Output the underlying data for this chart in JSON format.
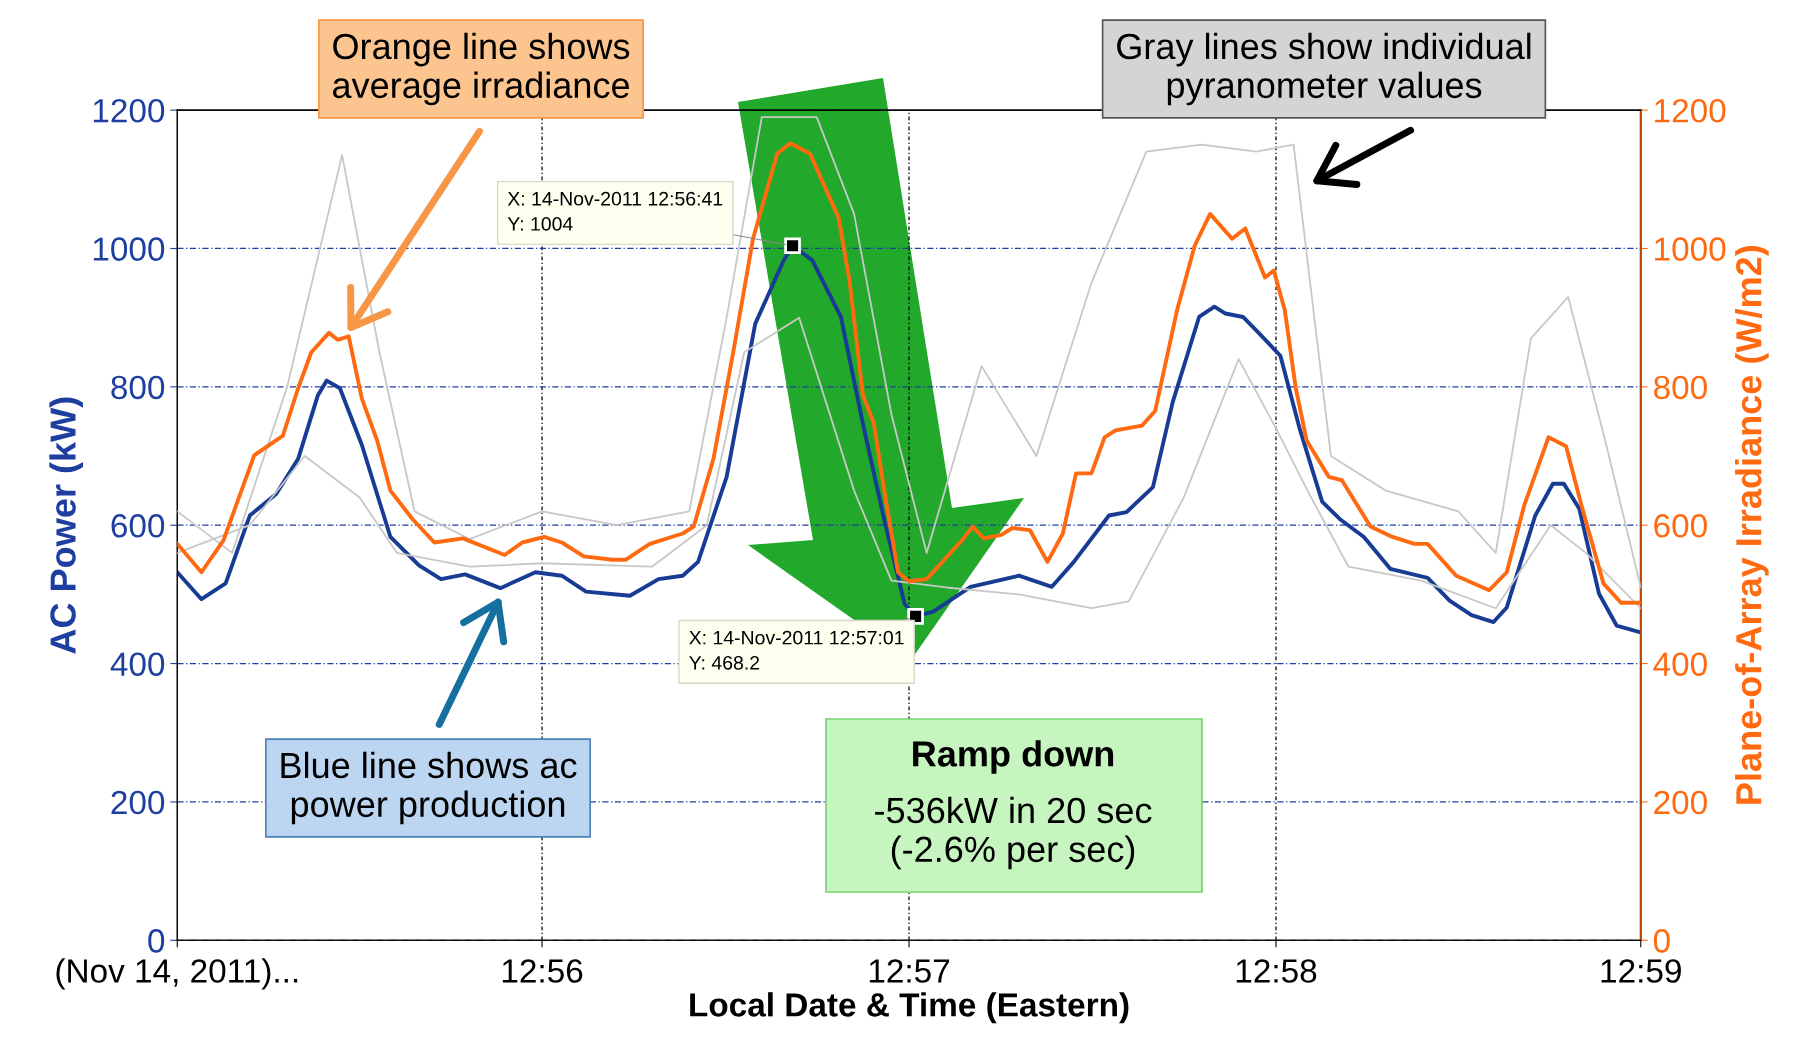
{
  "chart_data": {
    "type": "line",
    "xlabel": "Local Date & Time (Eastern)",
    "ylabel": "AC Power (kW)",
    "y2label": "Plane-of-Array Irradiance (W/m2)",
    "xlim": [
      12.9167,
      12.9833
    ],
    "xticks": [
      {
        "value": 12.9167,
        "label": "(Nov 14, 2011)..."
      },
      {
        "value": 12.9333,
        "label": "12:56"
      },
      {
        "value": 12.95,
        "label": "12:57"
      },
      {
        "value": 12.9667,
        "label": "12:58"
      },
      {
        "value": 12.9833,
        "label": "12:59"
      }
    ],
    "ylim": [
      0,
      1200
    ],
    "yticks": [
      0,
      200,
      400,
      600,
      800,
      1000,
      1200
    ],
    "y2lim": [
      0,
      1200
    ],
    "y2ticks": [
      0,
      200,
      400,
      600,
      800,
      1000,
      1200
    ],
    "grid": true,
    "series": [
      {
        "color": "#c8c8c8",
        "axis": "y2",
        "x": [
          12.9167,
          12.9192,
          12.9217,
          12.9242,
          12.9259,
          12.9275,
          12.93,
          12.9333,
          12.9367,
          12.94,
          12.9417,
          12.9433,
          12.9458,
          12.9475,
          12.9492,
          12.9508,
          12.9533,
          12.9558,
          12.9583,
          12.9608,
          12.9633,
          12.9658,
          12.9675,
          12.9692,
          12.9717,
          12.975,
          12.9767,
          12.9783,
          12.98,
          12.9817,
          12.9833
        ],
        "values": [
          620,
          560,
          800,
          1135,
          850,
          620,
          580,
          620,
          600,
          620,
          900,
          1190,
          1190,
          1050,
          760,
          560,
          830,
          700,
          950,
          1140,
          1150,
          1140,
          1150,
          700,
          650,
          620,
          560,
          870,
          930,
          720,
          510
        ]
      },
      {
        "color": "#c8c8c8",
        "axis": "y2",
        "x": [
          12.9167,
          12.92,
          12.9225,
          12.925,
          12.9267,
          12.93,
          12.9333,
          12.9383,
          12.9408,
          12.9425,
          12.945,
          12.9475,
          12.9492,
          12.9517,
          12.955,
          12.9583,
          12.96,
          12.9625,
          12.965,
          12.9667,
          12.9683,
          12.97,
          12.9733,
          12.9767,
          12.9792,
          12.9808,
          12.9833
        ],
        "values": [
          560,
          600,
          700,
          640,
          560,
          540,
          545,
          540,
          600,
          850,
          900,
          650,
          520,
          510,
          500,
          480,
          490,
          640,
          840,
          740,
          640,
          540,
          520,
          480,
          600,
          560,
          480
        ]
      },
      {
        "color": "#ff6a10",
        "axis": "y2",
        "x": [
          12.9167,
          12.9178,
          12.9188,
          12.9202,
          12.9215,
          12.9222,
          12.9228,
          12.9236,
          12.924,
          12.9245,
          12.9251,
          12.9258,
          12.9264,
          12.9274,
          12.9284,
          12.9297,
          12.9316,
          12.9324,
          12.9334,
          12.9342,
          12.9352,
          12.9365,
          12.9371,
          12.9382,
          12.9397,
          12.9402,
          12.9411,
          12.942,
          12.9429,
          12.944,
          12.9446,
          12.9455,
          12.946,
          12.9468,
          12.9473,
          12.9479,
          12.9484,
          12.9489,
          12.9495,
          12.95,
          12.9508,
          12.9518,
          12.9524,
          12.9529,
          12.9534,
          12.9542,
          12.9547,
          12.9555,
          12.9563,
          12.957,
          12.9576,
          12.9583,
          12.9589,
          12.9594,
          12.9606,
          12.9612,
          12.9622,
          12.963,
          12.9637,
          12.9647,
          12.9653,
          12.9662,
          12.9666,
          12.9671,
          12.9676,
          12.9681,
          12.9691,
          12.9697,
          12.971,
          12.972,
          12.973,
          12.9736,
          12.9749,
          12.9764,
          12.9772,
          12.978,
          12.9791,
          12.9799,
          12.9806,
          12.9816,
          12.9824,
          12.9833
        ],
        "values": [
          573,
          532,
          578,
          701,
          729,
          798,
          850,
          878,
          868,
          873,
          783,
          722,
          650,
          609,
          575,
          581,
          557,
          575,
          583,
          575,
          555,
          550,
          550,
          573,
          588,
          598,
          696,
          850,
          1014,
          1137,
          1152,
          1137,
          1101,
          1044,
          952,
          788,
          747,
          645,
          532,
          519,
          522,
          557,
          578,
          598,
          581,
          586,
          596,
          593,
          547,
          588,
          675,
          675,
          727,
          737,
          744,
          765,
          911,
          1004,
          1050,
          1014,
          1029,
          958,
          968,
          911,
          798,
          722,
          670,
          665,
          598,
          583,
          573,
          573,
          527,
          506,
          532,
          629,
          727,
          714,
          629,
          516,
          488,
          488
        ]
      },
      {
        "color": "#183c94",
        "axis": "y",
        "x": [
          12.9167,
          12.9178,
          12.9189,
          12.92,
          12.9212,
          12.9222,
          12.9231,
          12.9235,
          12.9241,
          12.9251,
          12.9264,
          12.9277,
          12.9287,
          12.9298,
          12.9314,
          12.933,
          12.9342,
          12.9353,
          12.9373,
          12.9386,
          12.9397,
          12.9404,
          12.9417,
          12.943,
          12.9443,
          12.9447,
          12.9456,
          12.9469,
          12.9479,
          12.9489,
          12.9498,
          12.9503,
          12.9511,
          12.9528,
          12.955,
          12.9565,
          12.9575,
          12.9591,
          12.9599,
          12.9611,
          12.962,
          12.9632,
          12.9639,
          12.9644,
          12.9652,
          12.966,
          12.9669,
          12.9678,
          12.9688,
          12.9696,
          12.9707,
          12.9719,
          12.9736,
          12.9746,
          12.9756,
          12.9766,
          12.9772,
          12.978,
          12.9785,
          12.9793,
          12.9798,
          12.9805,
          12.9814,
          12.9822,
          12.9833
        ],
        "values": [
          532,
          493,
          516,
          614,
          645,
          696,
          788,
          809,
          798,
          716,
          583,
          542,
          522,
          529,
          509,
          532,
          527,
          504,
          498,
          522,
          527,
          547,
          670,
          891,
          983,
          1004,
          983,
          901,
          747,
          604,
          486,
          468.2,
          475,
          511,
          527,
          511,
          547,
          614,
          619,
          655,
          778,
          901,
          916,
          906,
          901,
          875,
          845,
          737,
          634,
          609,
          583,
          537,
          524,
          491,
          470,
          460,
          481,
          563,
          614,
          660,
          660,
          624,
          501,
          455,
          445
        ]
      }
    ],
    "annotations": [
      "Orange line shows\naverage irradiance",
      "Gray lines show individual\npyranometer values",
      "Blue line shows ac\npower production",
      "Ramp down",
      "-536kW in 20 sec\n(-2.6% per sec)",
      {
        "text": "X: 14-Nov-2011 12:56:41\nY: 1004",
        "x": 12.9447,
        "y": 1004
      },
      {
        "text": "X: 14-Nov-2011 12:57:01\nY: 468.2",
        "x": 12.9503,
        "y": 468.2
      }
    ]
  }
}
